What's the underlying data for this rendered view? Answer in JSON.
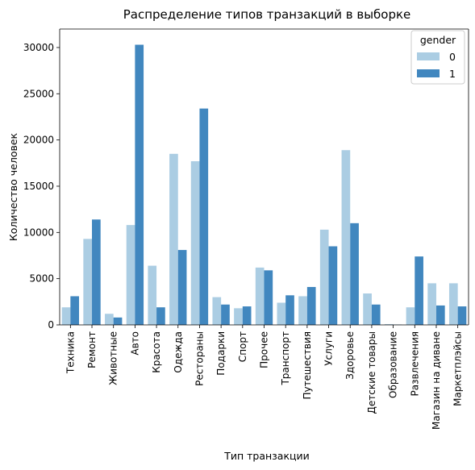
{
  "chart_data": {
    "type": "bar",
    "title": "Распределение типов транзакций в выборке",
    "xlabel": "Тип транзакции",
    "ylabel": "Количество человек",
    "ylim": [
      0,
      32000
    ],
    "yticks": [
      0,
      5000,
      10000,
      15000,
      20000,
      25000,
      30000
    ],
    "grid": false,
    "legend": {
      "title": "gender",
      "position": "top-right"
    },
    "categories": [
      "Техника",
      "Ремонт",
      "Животные",
      "Авто",
      "Красота",
      "Одежда",
      "Рестораны",
      "Подарки",
      "Спорт",
      "Прочее",
      "Транспорт",
      "Путешествия",
      "Услуги",
      "Здоровье",
      "Детские товары",
      "Образование",
      "Развлечения",
      "Магазин на диване",
      "Маркетплэйсы"
    ],
    "series": [
      {
        "name": "0",
        "color": "#abcde3",
        "values": [
          1900,
          9300,
          1200,
          10800,
          6400,
          18500,
          17700,
          3000,
          1800,
          6200,
          2400,
          3100,
          10300,
          18900,
          3400,
          80,
          1900,
          4500,
          4500
        ]
      },
      {
        "name": "1",
        "color": "#4187bf",
        "values": [
          3100,
          11400,
          800,
          30300,
          1900,
          8100,
          23400,
          2200,
          2000,
          5900,
          3200,
          4100,
          8500,
          11000,
          2200,
          30,
          7400,
          2100,
          2000
        ]
      }
    ]
  }
}
